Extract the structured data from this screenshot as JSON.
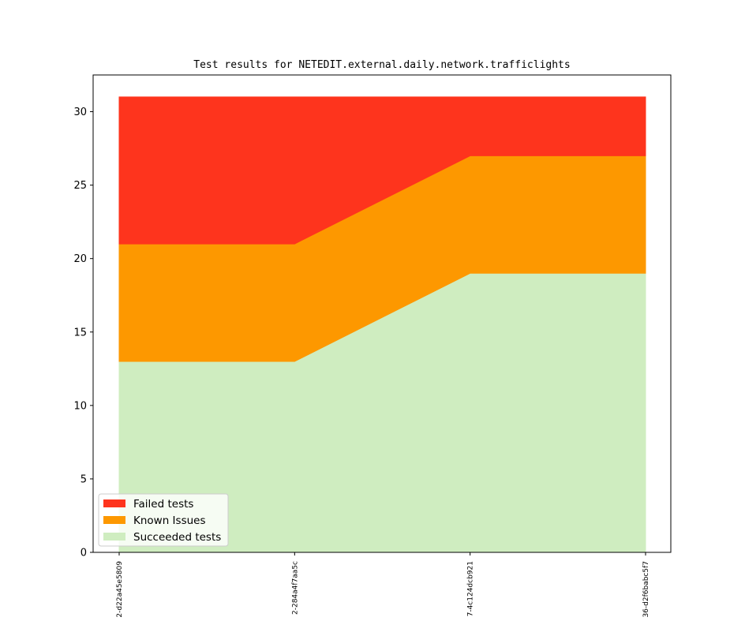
{
  "chart_data": {
    "type": "area",
    "stacked": true,
    "title": "Test results for NETEDIT.external.daily.network.trafficlights",
    "xlabel": "",
    "ylabel": "",
    "categories": [
      "2-d22a45e5809",
      "2-284a4f7aa5c",
      "7-4c124dcb921",
      "36-d2f6babc5f7"
    ],
    "ylim": [
      0,
      32.5
    ],
    "yticks": [
      0,
      5,
      10,
      15,
      20,
      25,
      30
    ],
    "grid": false,
    "legend_position": "lower-left",
    "series": [
      {
        "name": "Succeeded tests",
        "values": [
          13,
          13,
          19,
          19
        ],
        "color": "#cfedc0"
      },
      {
        "name": "Known Issues",
        "values": [
          8,
          8,
          8,
          8
        ],
        "color": "#fd9800"
      },
      {
        "name": "Failed tests",
        "values": [
          10,
          10,
          4,
          4
        ],
        "color": "#fe341d"
      }
    ],
    "legend_order": [
      "Failed tests",
      "Known Issues",
      "Succeeded tests"
    ]
  }
}
